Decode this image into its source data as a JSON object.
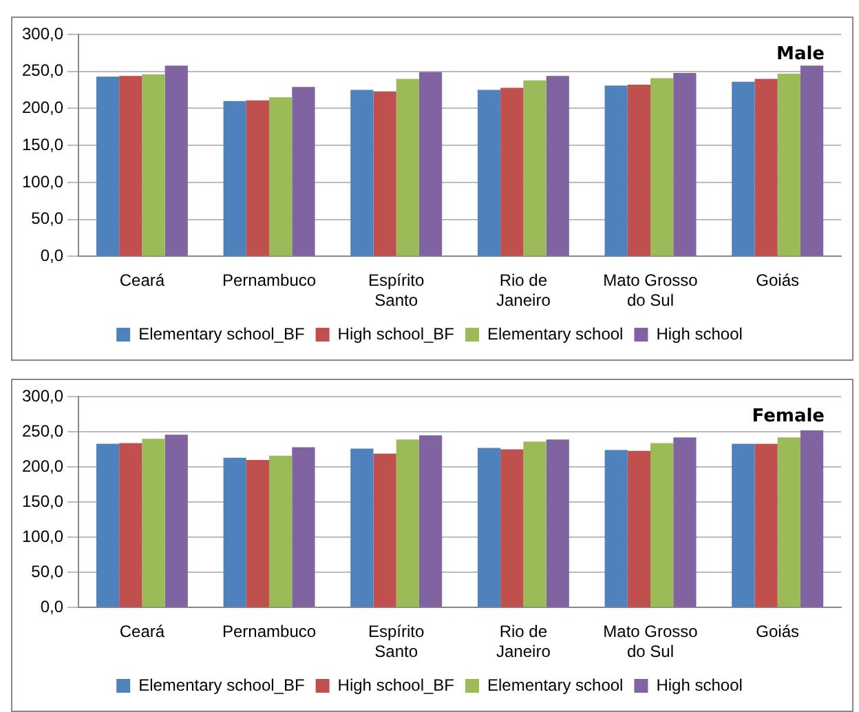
{
  "chart_data": [
    {
      "type": "bar",
      "title": "Male",
      "categories": [
        "Ceará",
        "Pernambuco",
        "Espírito Santo",
        "Rio de Janeiro",
        "Mato Grosso do Sul",
        "Goiás"
      ],
      "series": [
        {
          "name": "Elementary school_BF",
          "color": "#4f81bd",
          "values": [
            243,
            210,
            225,
            225,
            231,
            236
          ]
        },
        {
          "name": "High school_BF",
          "color": "#c0504d",
          "values": [
            244,
            211,
            223,
            228,
            232,
            240
          ]
        },
        {
          "name": "Elementary school",
          "color": "#9bbb59",
          "values": [
            246,
            215,
            240,
            238,
            241,
            247
          ]
        },
        {
          "name": "High school",
          "color": "#8064a2",
          "values": [
            258,
            229,
            249,
            244,
            248,
            258
          ]
        }
      ],
      "ylim": [
        0,
        300
      ],
      "yticks": [
        {
          "value": 0,
          "label": "0,0"
        },
        {
          "value": 50,
          "label": "50,0"
        },
        {
          "value": 100,
          "label": "100,0"
        },
        {
          "value": 150,
          "label": "150,0"
        },
        {
          "value": 200,
          "label": "200,0"
        },
        {
          "value": 250,
          "label": "250,0"
        },
        {
          "value": 300,
          "label": "300,0"
        }
      ],
      "grid": "y",
      "legend": "bottom"
    },
    {
      "type": "bar",
      "title": "Female",
      "categories": [
        "Ceará",
        "Pernambuco",
        "Espírito Santo",
        "Rio de Janeiro",
        "Mato Grosso do Sul",
        "Goiás"
      ],
      "series": [
        {
          "name": "Elementary school_BF",
          "color": "#4f81bd",
          "values": [
            233,
            213,
            226,
            227,
            224,
            233
          ]
        },
        {
          "name": "High school_BF",
          "color": "#c0504d",
          "values": [
            234,
            210,
            219,
            225,
            223,
            233
          ]
        },
        {
          "name": "Elementary school",
          "color": "#9bbb59",
          "values": [
            240,
            216,
            239,
            236,
            234,
            242
          ]
        },
        {
          "name": "High school",
          "color": "#8064a2",
          "values": [
            246,
            228,
            245,
            239,
            242,
            252
          ]
        }
      ],
      "ylim": [
        0,
        300
      ],
      "yticks": [
        {
          "value": 0,
          "label": "0,0"
        },
        {
          "value": 50,
          "label": "50,0"
        },
        {
          "value": 100,
          "label": "100,0"
        },
        {
          "value": 150,
          "label": "150,0"
        },
        {
          "value": 200,
          "label": "200,0"
        },
        {
          "value": 250,
          "label": "250,0"
        },
        {
          "value": 300,
          "label": "300,0"
        }
      ],
      "grid": "y",
      "legend": "bottom"
    }
  ]
}
